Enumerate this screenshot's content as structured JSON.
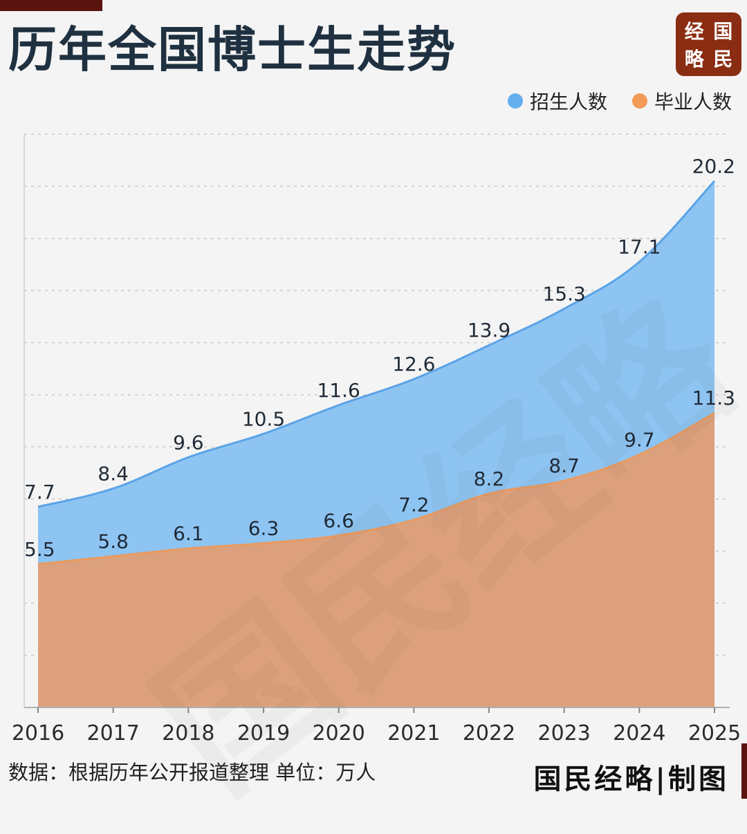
{
  "title": "历年全国博士生走势",
  "logo": {
    "chars": [
      "经",
      "国",
      "略",
      "民"
    ]
  },
  "legend": [
    {
      "label": "招生人数",
      "color": "#64aeee"
    },
    {
      "label": "毕业人数",
      "color": "#f39a56"
    }
  ],
  "footer": {
    "source": "数据：根据历年公开报道整理 单位：万人",
    "brand": "国民经略|制图"
  },
  "watermark": "国民经略",
  "colors": {
    "enroll_fill": "#8ec4f2",
    "enroll_line": "#5aa3e6",
    "grad_fill": "#dca17c",
    "grad_line": "#e99a5f"
  },
  "chart_data": {
    "type": "area",
    "categories": [
      "2016",
      "2017",
      "2018",
      "2019",
      "2020",
      "2021",
      "2022",
      "2023",
      "2024",
      "2025"
    ],
    "series": [
      {
        "name": "招生人数",
        "values": [
          7.7,
          8.4,
          9.6,
          10.5,
          11.6,
          12.6,
          13.9,
          15.3,
          17.1,
          20.2
        ]
      },
      {
        "name": "毕业人数",
        "values": [
          5.5,
          5.8,
          6.1,
          6.3,
          6.6,
          7.2,
          8.2,
          8.7,
          9.7,
          11.3
        ]
      }
    ],
    "ylim": [
      0,
      22
    ],
    "grid": true,
    "legend_position": "top-right"
  }
}
